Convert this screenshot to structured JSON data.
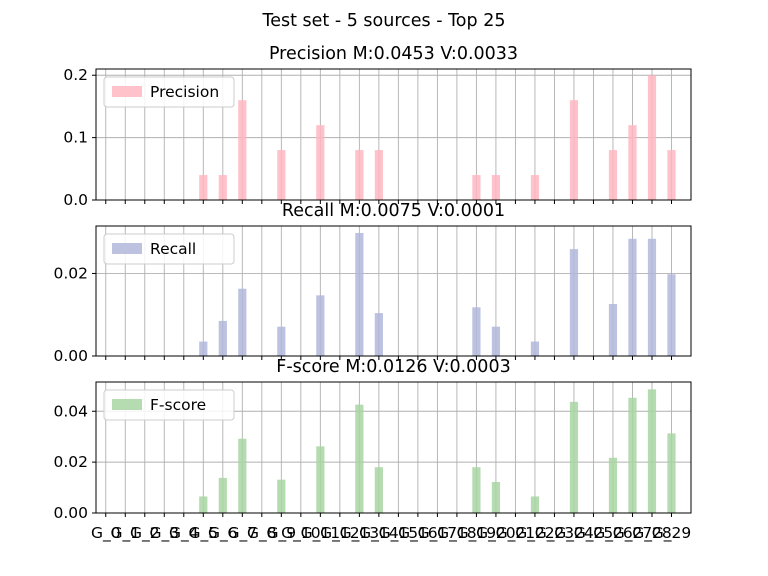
{
  "figure_title": "Test set - 5 sources - Top 25",
  "x_tick_labels": [
    "G_0",
    "G_1",
    "G_2",
    "G_3",
    "G_4",
    "G_5",
    "G_6",
    "G_7",
    "G_8",
    "G_9",
    "G_10",
    "G_11",
    "G_12",
    "G_13",
    "G_14",
    "G_15",
    "G_16",
    "G_17",
    "G_18",
    "G_19",
    "G_20",
    "G_21",
    "G_22",
    "G_23",
    "G_24",
    "G_25",
    "G_26",
    "G_27",
    "G_28",
    "G_29"
  ],
  "chart_data": [
    {
      "type": "bar",
      "title": "Precision M:0.0453 V:0.0033",
      "legend": "Precision",
      "color": "#ffb6c1",
      "ylim": [
        0,
        0.21
      ],
      "yticks": [
        0.0,
        0.1,
        0.2
      ],
      "ytick_labels": [
        "0.0",
        "0.1",
        "0.2"
      ],
      "values": [
        0,
        0,
        0,
        0,
        0,
        0.04,
        0.04,
        0.16,
        0,
        0.08,
        0,
        0.12,
        0,
        0.08,
        0.08,
        0,
        0,
        0,
        0,
        0.04,
        0.04,
        0,
        0.04,
        0,
        0.16,
        0,
        0.08,
        0.12,
        0.2,
        0.08
      ]
    },
    {
      "type": "bar",
      "title": "Recall M:0.0075 V:0.0001",
      "legend": "Recall",
      "color": "#b0b7da",
      "ylim": [
        0,
        0.0315
      ],
      "yticks": [
        0.0,
        0.02
      ],
      "ytick_labels": [
        "0.00",
        "0.02"
      ],
      "values": [
        0,
        0,
        0,
        0,
        0,
        0.0035,
        0.0085,
        0.0163,
        0,
        0.0071,
        0,
        0.0147,
        0,
        0.0298,
        0.0104,
        0,
        0,
        0,
        0,
        0.0118,
        0.0071,
        0,
        0.0035,
        0,
        0.0259,
        0,
        0.0126,
        0.0284,
        0.0284,
        0.0198
      ]
    },
    {
      "type": "bar",
      "title": "F-score M:0.0126 V:0.0003",
      "legend": "F-score",
      "color": "#a8d5a2",
      "ylim": [
        0,
        0.0515
      ],
      "yticks": [
        0.0,
        0.02,
        0.04
      ],
      "ytick_labels": [
        "0.00",
        "0.02",
        "0.04"
      ],
      "values": [
        0,
        0,
        0,
        0,
        0,
        0.0065,
        0.0138,
        0.0292,
        0,
        0.0131,
        0,
        0.0262,
        0,
        0.0426,
        0.018,
        0,
        0,
        0,
        0,
        0.018,
        0.0122,
        0,
        0.0065,
        0,
        0.0437,
        0,
        0.0217,
        0.0453,
        0.0486,
        0.0313
      ]
    }
  ]
}
